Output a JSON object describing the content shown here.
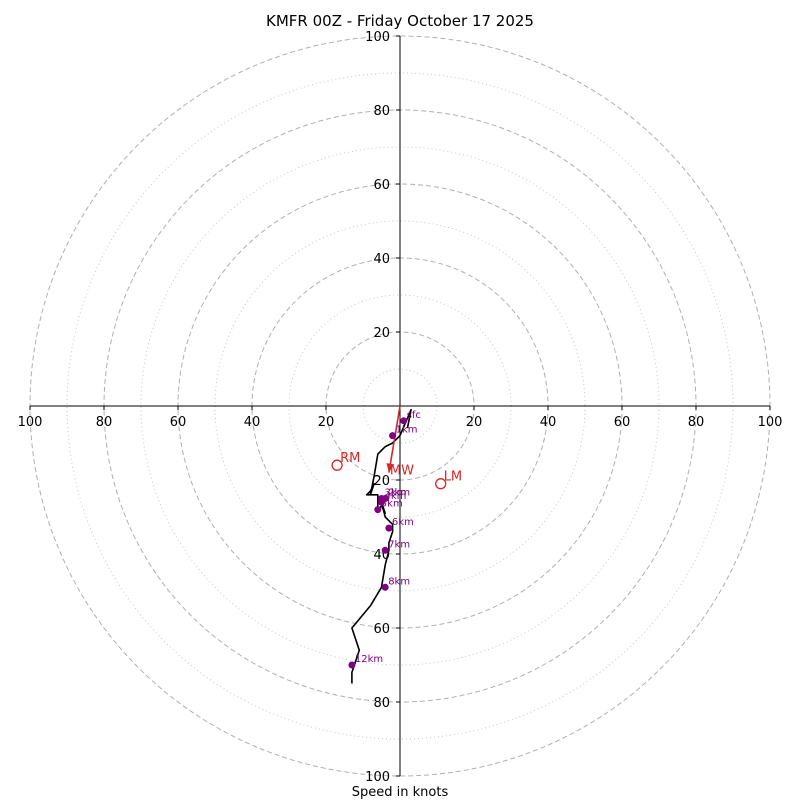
{
  "chart_data": {
    "type": "hodograph",
    "title": "KMFR 00Z - Friday October 17 2025",
    "xlabel": "Speed in knots",
    "units": "knots",
    "range": [
      -100,
      100
    ],
    "ring_major": [
      20,
      40,
      60,
      80,
      100
    ],
    "ring_minor": [
      10,
      30,
      50,
      70,
      90
    ],
    "x_tick_labels": [
      "100",
      "80",
      "60",
      "40",
      "20",
      "20",
      "40",
      "60",
      "80",
      "100"
    ],
    "y_tick_labels": [
      "100",
      "80",
      "60",
      "40",
      "20",
      "20",
      "40",
      "60",
      "80",
      "100"
    ],
    "colors": {
      "trace": "#000000",
      "heights": "#800080",
      "points": "#d62728",
      "grid": "#b0b0b0"
    },
    "trace": {
      "u": [
        2,
        3,
        0,
        -2,
        -4,
        -6,
        -7,
        -8,
        -7,
        -8,
        -9,
        -6,
        -6,
        -5,
        -4,
        -5,
        -4,
        -2,
        -2,
        -3,
        -3,
        -4,
        -5,
        -8,
        -13,
        -11,
        -13,
        -13
      ],
      "v": [
        -6,
        -1,
        -8,
        -10,
        -11,
        -13,
        -19,
        -24,
        -21,
        -23,
        -24,
        -24,
        -28,
        -27,
        -29,
        -26,
        -30,
        -32,
        -34,
        -37,
        -39,
        -43,
        -49,
        -54,
        -60,
        -66,
        -72,
        -75
      ]
    },
    "heights": [
      {
        "label": "sfc",
        "u": 1,
        "v": -4
      },
      {
        "label": "1km",
        "u": -2,
        "v": -8
      },
      {
        "label": "2km",
        "u": -4,
        "v": -25
      },
      {
        "label": "3km",
        "u": -5,
        "v": -25
      },
      {
        "label": "4km",
        "u": -5,
        "v": -26
      },
      {
        "label": "5km",
        "u": -6,
        "v": -28
      },
      {
        "label": "6km",
        "u": -3,
        "v": -33
      },
      {
        "label": "7km",
        "u": -4,
        "v": -39
      },
      {
        "label": "8km",
        "u": -4,
        "v": -49
      },
      {
        "label": "12km",
        "u": -13,
        "v": -70
      }
    ],
    "points": [
      {
        "label": "RM",
        "u": -17,
        "v": -16
      },
      {
        "label": "LM",
        "u": 11,
        "v": -21
      },
      {
        "label": "MW",
        "u": -3,
        "v": -18
      }
    ],
    "mean_wind_arrow": {
      "from": [
        0,
        0
      ],
      "to": [
        -3,
        -18
      ]
    }
  }
}
